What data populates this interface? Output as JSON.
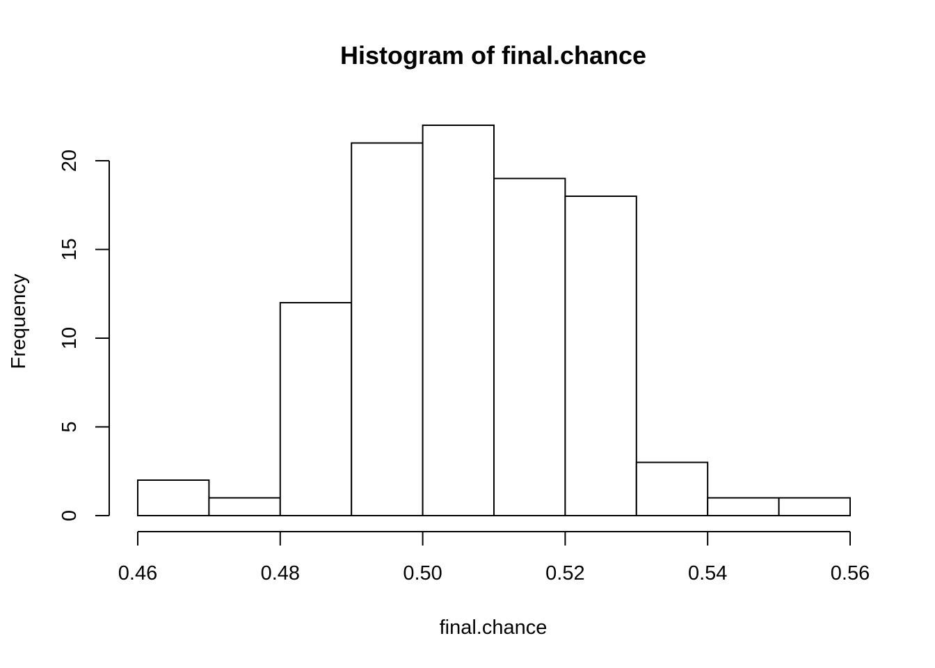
{
  "chart_data": {
    "type": "bar",
    "title": "Histogram of final.chance",
    "xlabel": "final.chance",
    "ylabel": "Frequency",
    "bin_edges": [
      0.46,
      0.47,
      0.48,
      0.49,
      0.5,
      0.51,
      0.52,
      0.53,
      0.54,
      0.55,
      0.56
    ],
    "values": [
      2,
      1,
      12,
      21,
      22,
      19,
      18,
      3,
      1,
      1
    ],
    "xlim": [
      0.46,
      0.56
    ],
    "ylim": [
      0,
      22
    ],
    "x_ticks": [
      0.46,
      0.48,
      0.5,
      0.52,
      0.54,
      0.56
    ],
    "x_tick_labels": [
      "0.46",
      "0.48",
      "0.50",
      "0.52",
      "0.54",
      "0.56"
    ],
    "y_ticks": [
      0,
      5,
      10,
      15,
      20
    ],
    "y_tick_labels": [
      "0",
      "5",
      "10",
      "15",
      "20"
    ],
    "grid": false,
    "colors": {
      "bar_fill": "#ffffff",
      "bar_stroke": "#000000"
    }
  }
}
